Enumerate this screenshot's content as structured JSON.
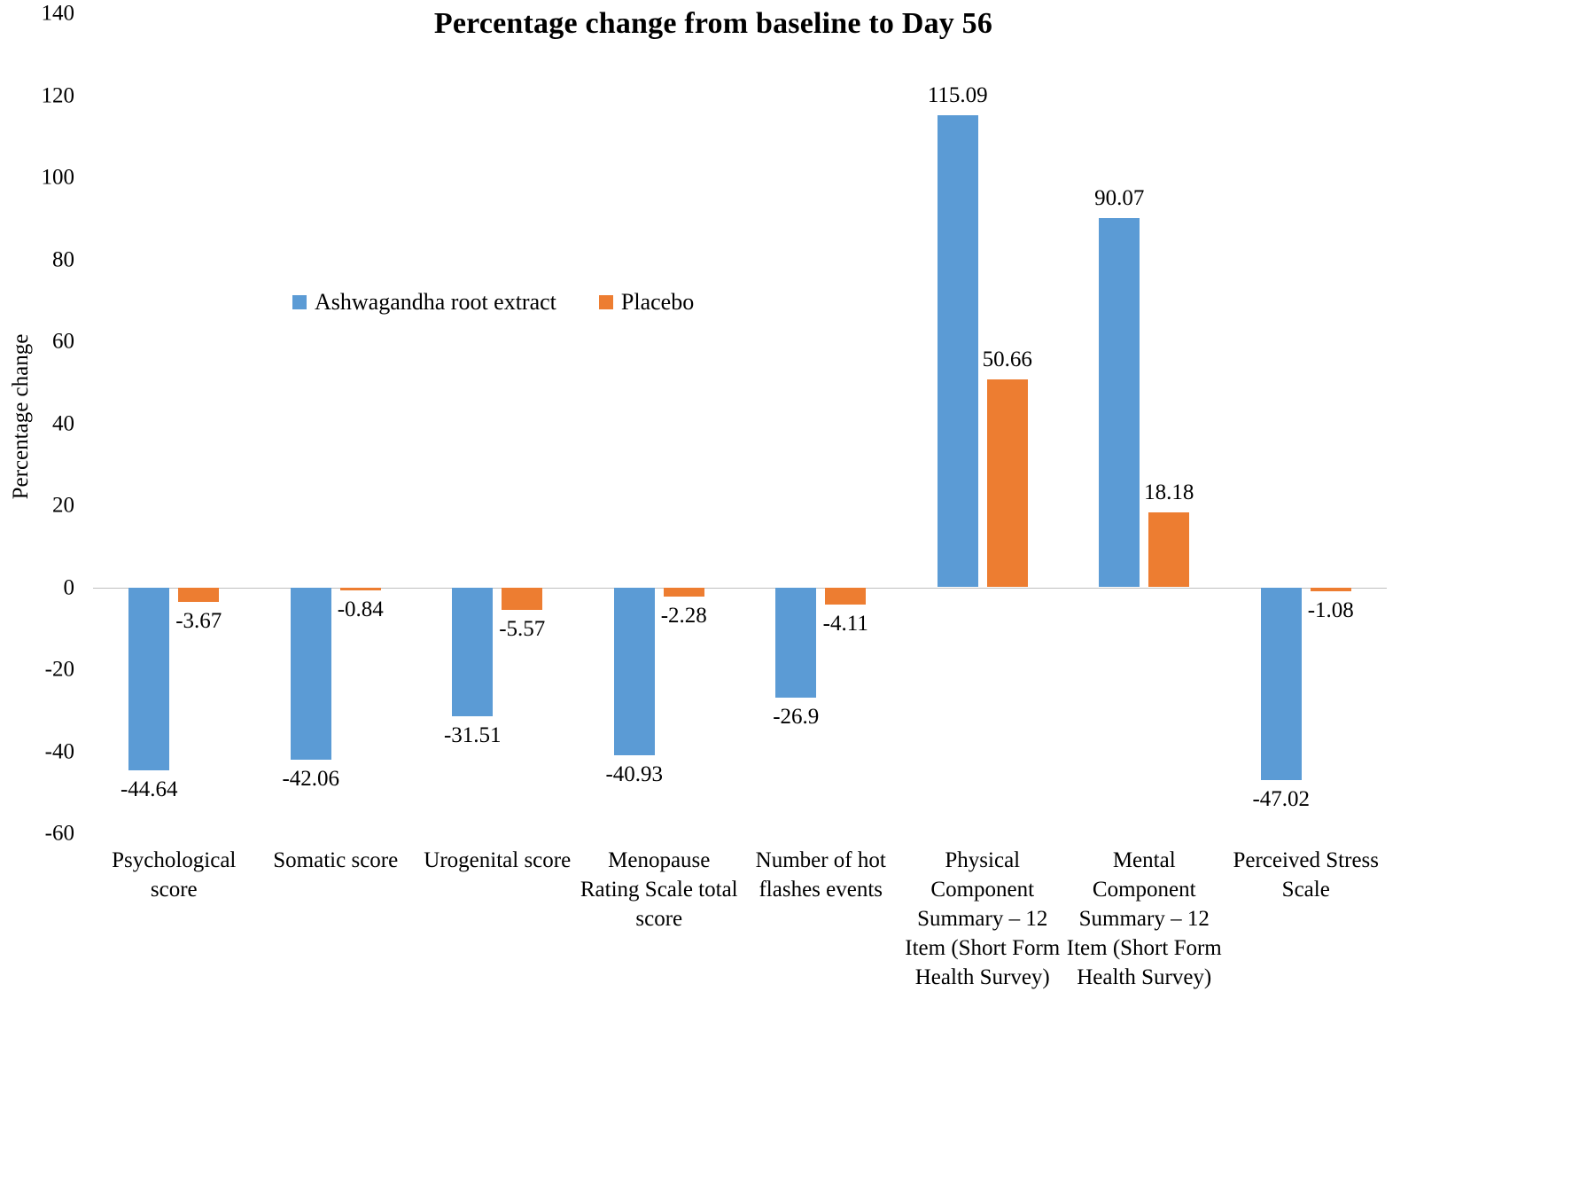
{
  "chart_data": {
    "type": "bar",
    "title": "Percentage change from baseline to Day 56",
    "xlabel": "",
    "ylabel": "Percentage change",
    "ylim": [
      -60,
      140
    ],
    "ytick_step": 20,
    "grid": false,
    "legend_position": "inside-upper-left",
    "value_labels": true,
    "axis_line_color": "#bfbfbf",
    "categories": [
      "Psychological score",
      "Somatic score",
      "Urogenital score",
      "Menopause Rating Scale total score",
      "Number of hot flashes events",
      "Physical Component Summary – 12 Item (Short Form Health Survey)",
      "Mental Component Summary – 12 Item (Short Form Health Survey)",
      "Perceived Stress Scale"
    ],
    "series": [
      {
        "name": "Ashwagandha root extract",
        "color": "#5B9BD5",
        "values": [
          -44.64,
          -42.06,
          -31.51,
          -40.93,
          -26.9,
          115.09,
          90.07,
          -47.02
        ]
      },
      {
        "name": "Placebo",
        "color": "#ED7D31",
        "values": [
          -3.67,
          -0.84,
          -5.57,
          -2.28,
          -4.11,
          50.66,
          18.18,
          -1.08
        ]
      }
    ]
  }
}
